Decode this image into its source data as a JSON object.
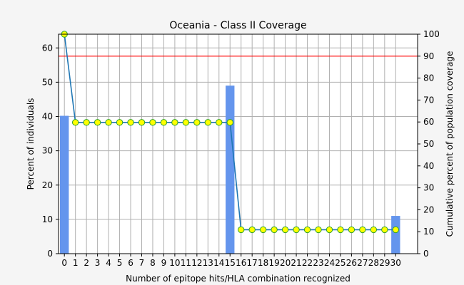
{
  "chart_data": {
    "type": "bar",
    "title": "Oceania - Class II Coverage",
    "xlabel": "Number of epitope hits/HLA combination recognized",
    "ylabel": "Percent of individuals",
    "y2label": "Cumulative percent of population coverage",
    "x": [
      0,
      1,
      2,
      3,
      4,
      5,
      6,
      7,
      8,
      9,
      10,
      11,
      12,
      13,
      14,
      15,
      16,
      17,
      18,
      19,
      20,
      21,
      22,
      23,
      24,
      25,
      26,
      27,
      28,
      29,
      30
    ],
    "ylim": [
      0,
      64
    ],
    "y2lim": [
      0,
      100
    ],
    "yticks": [
      0,
      10,
      20,
      30,
      40,
      50,
      60
    ],
    "y2ticks": [
      0,
      10,
      20,
      30,
      40,
      50,
      60,
      70,
      80,
      90,
      100
    ],
    "grid": true,
    "reference_line": {
      "axis": "y2",
      "value": 90,
      "color": "#ff0000"
    },
    "series": [
      {
        "kind": "bar",
        "axis": "y",
        "color": "#6495ed",
        "values": [
          40.2,
          0,
          0,
          0,
          0,
          0,
          0,
          0,
          0,
          0,
          0,
          0,
          0,
          0,
          0,
          49,
          0,
          0,
          0,
          0,
          0,
          0,
          0,
          0,
          0,
          0,
          0,
          0,
          0,
          0,
          11
        ]
      },
      {
        "kind": "line",
        "axis": "y2",
        "color": "#1f77b4",
        "marker_color": "#ffff00",
        "values": [
          100,
          59.8,
          59.8,
          59.8,
          59.8,
          59.8,
          59.8,
          59.8,
          59.8,
          59.8,
          59.8,
          59.8,
          59.8,
          59.8,
          59.8,
          59.8,
          10.9,
          10.9,
          10.9,
          10.9,
          10.9,
          10.9,
          10.9,
          10.9,
          10.9,
          10.9,
          10.9,
          10.9,
          10.9,
          10.9,
          10.9
        ]
      }
    ]
  }
}
